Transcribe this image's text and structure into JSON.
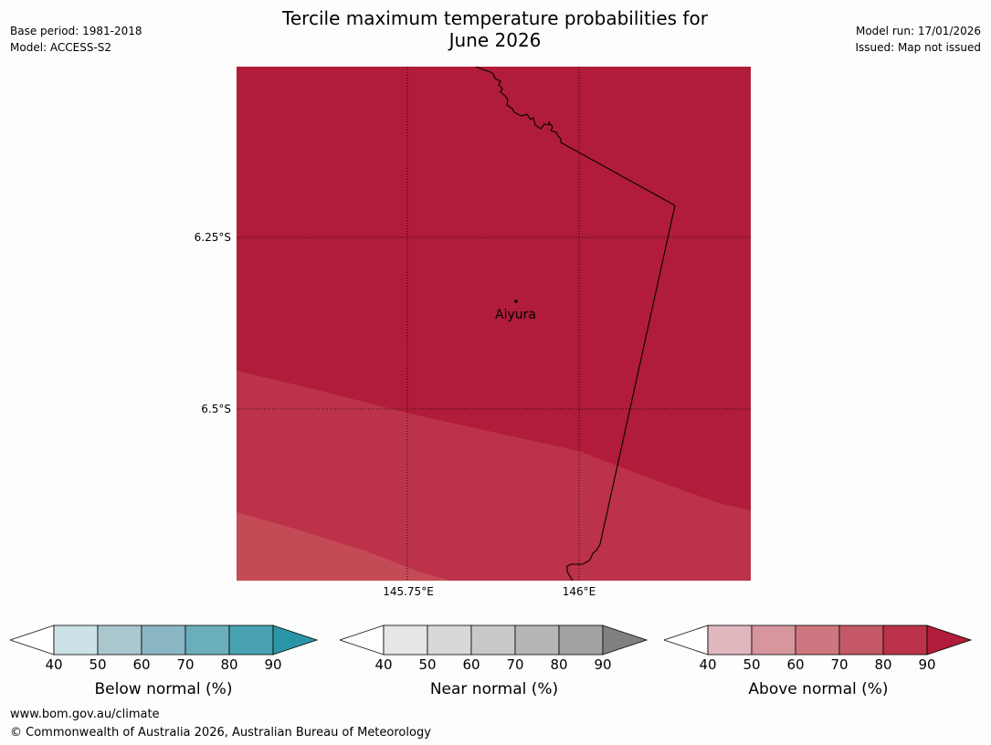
{
  "title_line1": "Tercile maximum temperature probabilities for",
  "title_line2": "June 2026",
  "base_period": "Base period: 1981-2018",
  "model": "Model: ACCESS-S2",
  "model_run": "Model run: 17/01/2026",
  "issued": "Issued: Map not issued",
  "lat_labels": [
    "6.25°S",
    "6.5°S"
  ],
  "lon_labels": [
    "145.75°E",
    "146°E"
  ],
  "town": {
    "name": "Aiyura"
  },
  "colors": {
    "above_90": "#b01c39",
    "above_80": "#bc3249",
    "above_70": "#c34b56",
    "border": "#000000"
  },
  "colorbars": [
    {
      "label": "Below normal (%)",
      "ticks": [
        "40",
        "50",
        "60",
        "70",
        "80",
        "90"
      ],
      "colors": [
        "#ffffff",
        "#cbe2e7",
        "#a9c7cc",
        "#8bb6c3",
        "#6baebb",
        "#47a1b1",
        "#2a95a6"
      ]
    },
    {
      "label": "Near normal (%)",
      "ticks": [
        "40",
        "50",
        "60",
        "70",
        "80",
        "90"
      ],
      "colors": [
        "#ffffff",
        "#e6e6e6",
        "#d8d8d8",
        "#c9c9c9",
        "#b6b6b6",
        "#a2a2a2",
        "#808080"
      ]
    },
    {
      "label": "Above normal (%)",
      "ticks": [
        "40",
        "50",
        "60",
        "70",
        "80",
        "90"
      ],
      "colors": [
        "#ffffff",
        "#e0b7bd",
        "#d7959d",
        "#cd7880",
        "#c55867",
        "#bc3249",
        "#b01c39"
      ]
    }
  ],
  "footer_url": "www.bom.gov.au/climate",
  "footer_copyright": "© Commonwealth of Australia 2026, Australian Bureau of Meteorology"
}
